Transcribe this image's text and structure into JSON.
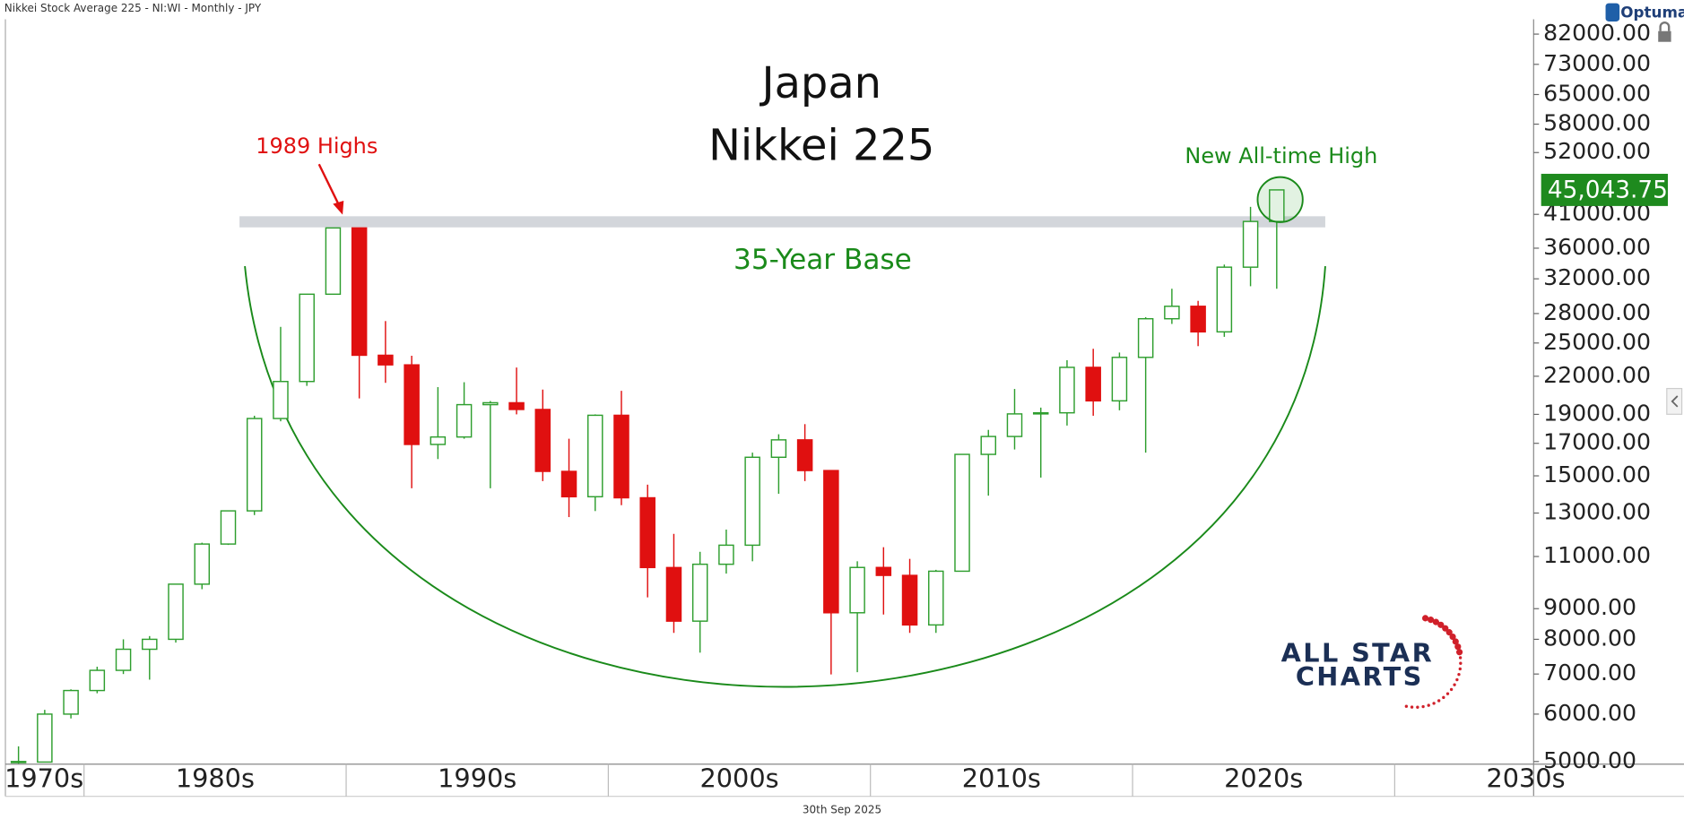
{
  "chart_data": {
    "type": "candlestick",
    "header": "Nikkei Stock Average 225 - NI:WI - Monthly - JPY",
    "title": "Japan",
    "subtitle": "Nikkei 225",
    "annotations": [
      "1989 Highs",
      "New All-time High",
      "35-Year Base"
    ],
    "footer_date": "30th Sep 2025",
    "logo": "Optuma",
    "watermark": [
      "ALL STAR",
      "CHARTS"
    ],
    "log_scale": true,
    "grid": false,
    "up_color": "#2e9e2e",
    "down_color": "#e01010",
    "x": [
      1977,
      1978,
      1979,
      1980,
      1981,
      1982,
      1983,
      1984,
      1985,
      1986,
      1987,
      1988,
      1989,
      1990,
      1991,
      1992,
      1993,
      1994,
      1995,
      1996,
      1997,
      1998,
      1999,
      2000,
      2001,
      2002,
      2003,
      2004,
      2005,
      2006,
      2007,
      2008,
      2009,
      2010,
      2011,
      2012,
      2013,
      2014,
      2015,
      2016,
      2017,
      2018,
      2019,
      2020,
      2021,
      2022,
      2023,
      2024,
      2025
    ],
    "open": [
      5000,
      4990,
      6000,
      6570,
      7100,
      7700,
      8000,
      9890,
      11540,
      13110,
      18700,
      21560,
      30160,
      38916,
      23849,
      22984,
      16925,
      17417,
      19723,
      19868,
      19361,
      15259,
      13842,
      18934,
      13786,
      10543,
      8579,
      10677,
      11489,
      16111,
      17226,
      15308,
      8860,
      10546,
      10229,
      8455,
      10395,
      16291,
      17451,
      19034,
      19114,
      22765,
      20015,
      23657,
      27444,
      28792,
      26095,
      33464,
      39895
    ],
    "high": [
      5300,
      6100,
      6600,
      7200,
      8000,
      8100,
      9900,
      11600,
      13100,
      18900,
      26600,
      30200,
      38957,
      38950,
      27200,
      23800,
      21100,
      21500,
      20000,
      22750,
      20900,
      17300,
      19000,
      20800,
      14500,
      12000,
      11200,
      12200,
      16400,
      17600,
      18300,
      15200,
      10800,
      11400,
      10900,
      10450,
      16300,
      17900,
      20950,
      19500,
      23400,
      24450,
      24100,
      27600,
      30800,
      29400,
      33800,
      42200,
      45100
    ],
    "low": [
      4900,
      5000,
      5900,
      6500,
      7000,
      6850,
      7900,
      9700,
      11500,
      12900,
      18500,
      21200,
      30100,
      20200,
      21450,
      14300,
      16000,
      17300,
      14300,
      19000,
      14700,
      12800,
      13100,
      13400,
      9400,
      8200,
      7600,
      10300,
      10800,
      14000,
      14700,
      6990,
      7050,
      8800,
      8200,
      8200,
      10400,
      13900,
      16600,
      14900,
      18200,
      18900,
      19300,
      16400,
      26900,
      24700,
      25600,
      31100,
      30800
    ],
    "close": [
      5000,
      6000,
      6570,
      7100,
      7700,
      8000,
      9890,
      11540,
      13110,
      18700,
      21560,
      30160,
      38916,
      23849,
      22984,
      16925,
      17417,
      19723,
      19868,
      19361,
      15259,
      13842,
      18934,
      13786,
      10543,
      8579,
      10677,
      11489,
      16111,
      17226,
      15308,
      8860,
      10546,
      10229,
      8455,
      10395,
      16291,
      17451,
      19034,
      19114,
      22765,
      20015,
      23657,
      27444,
      28792,
      26095,
      33464,
      39895,
      45043.75
    ],
    "last_price": {
      "value": 45043.75,
      "label": "45,043.75"
    },
    "resistance_band": [
      39000,
      40700
    ],
    "xlim": [
      1977,
      2035.3
    ],
    "xticks": [
      1980,
      1990,
      2000,
      2010,
      2020,
      2030
    ],
    "x_labels": [
      {
        "value": 1975,
        "label": "1970s"
      },
      {
        "value": 1985,
        "label": "1980s"
      },
      {
        "value": 1995,
        "label": "1990s"
      },
      {
        "value": 2005,
        "label": "2000s"
      },
      {
        "value": 2015,
        "label": "2010s"
      },
      {
        "value": 2025,
        "label": "2020s"
      },
      {
        "value": 2035,
        "label": "2030s"
      }
    ],
    "ylim": [
      4950,
      86800
    ],
    "yticks": [
      {
        "value": 82000,
        "label": "82000.00"
      },
      {
        "value": 73000,
        "label": "73000.00"
      },
      {
        "value": 65000,
        "label": "65000.00"
      },
      {
        "value": 58000,
        "label": "58000.00"
      },
      {
        "value": 52000,
        "label": "52000.00"
      },
      {
        "value": 41000,
        "label": "41000.00"
      },
      {
        "value": 36000,
        "label": "36000.00"
      },
      {
        "value": 32000,
        "label": "32000.00"
      },
      {
        "value": 28000,
        "label": "28000.00"
      },
      {
        "value": 25000,
        "label": "25000.00"
      },
      {
        "value": 22000,
        "label": "22000.00"
      },
      {
        "value": 19000,
        "label": "19000.00"
      },
      {
        "value": 17000,
        "label": "17000.00"
      },
      {
        "value": 15000,
        "label": "15000.00"
      },
      {
        "value": 13000,
        "label": "13000.00"
      },
      {
        "value": 11000,
        "label": "11000.00"
      },
      {
        "value": 9000,
        "label": "9000.00"
      },
      {
        "value": 8000,
        "label": "8000.00"
      },
      {
        "value": 7000,
        "label": "7000.00"
      },
      {
        "value": 6000,
        "label": "6000.00"
      },
      {
        "value": 5000,
        "label": "5000.00"
      }
    ]
  }
}
